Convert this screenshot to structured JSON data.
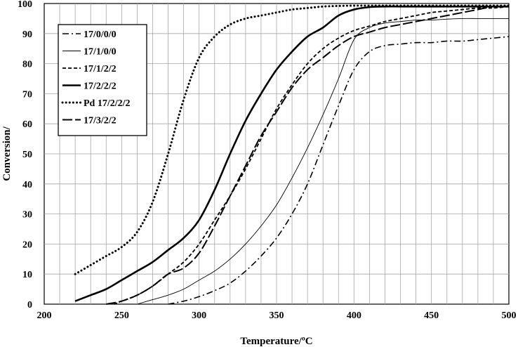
{
  "chart_data": {
    "type": "line",
    "xlabel": "Temperature/ºC",
    "ylabel": "Conversion/",
    "xlim": [
      200,
      500
    ],
    "ylim": [
      0,
      100
    ],
    "xticks": [
      200,
      250,
      300,
      350,
      400,
      450,
      500
    ],
    "yticks": [
      0,
      10,
      20,
      30,
      40,
      50,
      60,
      70,
      80,
      90,
      100
    ],
    "grid": true,
    "legend_position": "top-left",
    "series": [
      {
        "name": "17/0/0/0",
        "style": "dashdot",
        "x": [
          280,
          290,
          300,
          310,
          320,
          330,
          340,
          350,
          360,
          370,
          380,
          390,
          400,
          410,
          420,
          430,
          440,
          450,
          460,
          470,
          480,
          490,
          500
        ],
        "y": [
          0,
          1,
          2.5,
          4.5,
          7,
          11,
          16,
          22,
          30,
          40,
          53,
          66,
          78,
          84,
          86,
          86.5,
          87,
          87,
          87.5,
          87.5,
          88,
          88.5,
          89
        ]
      },
      {
        "name": "17/1/0/0",
        "style": "thin",
        "x": [
          260,
          270,
          280,
          290,
          300,
          310,
          320,
          330,
          340,
          350,
          360,
          370,
          380,
          390,
          400,
          410,
          420,
          430,
          440,
          450,
          460,
          470,
          480,
          490,
          500
        ],
        "y": [
          0,
          1.5,
          3,
          5,
          8,
          11,
          15,
          20,
          26,
          33,
          42,
          52,
          63,
          75,
          88,
          92,
          93.5,
          94,
          94.5,
          94.5,
          94.8,
          95,
          95,
          95,
          95
        ]
      },
      {
        "name": "17/1/2/2",
        "style": "dashed",
        "x": [
          245,
          250,
          260,
          270,
          280,
          290,
          300,
          310,
          320,
          330,
          340,
          350,
          360,
          370,
          380,
          390,
          400,
          410,
          420,
          430,
          440,
          450,
          460,
          470,
          480,
          490,
          500
        ],
        "y": [
          0,
          1,
          3,
          6,
          10,
          14,
          20,
          28,
          36,
          45,
          55,
          65,
          73,
          80,
          85,
          88.5,
          91,
          92.5,
          94,
          95,
          96,
          97,
          97.5,
          98,
          98.5,
          98.5,
          99
        ]
      },
      {
        "name": "17/2/2/2",
        "style": "thick",
        "x": [
          220,
          230,
          240,
          250,
          260,
          270,
          280,
          290,
          300,
          310,
          320,
          330,
          340,
          350,
          360,
          370,
          380,
          390,
          400,
          410,
          420,
          430,
          440,
          450,
          460,
          470,
          480,
          490,
          500
        ],
        "y": [
          1,
          3,
          5,
          8,
          11,
          14,
          18,
          22,
          28,
          38,
          50,
          61,
          70,
          78,
          84,
          89,
          92,
          96,
          98,
          98.8,
          99,
          99,
          99,
          99,
          99,
          99,
          99,
          99,
          99
        ]
      },
      {
        "name": "Pd 17/2/2/2",
        "style": "dotted",
        "x": [
          220,
          230,
          240,
          250,
          260,
          270,
          280,
          290,
          300,
          310,
          320,
          330,
          340,
          350,
          360,
          370,
          380,
          390,
          400,
          410,
          420,
          430,
          440,
          450,
          460,
          470,
          480,
          490,
          500
        ],
        "y": [
          10,
          13,
          16,
          19,
          24,
          34,
          50,
          68,
          82,
          89,
          93,
          95,
          96,
          97,
          98,
          98.5,
          99,
          99.2,
          99.3,
          99.3,
          99.3,
          99.3,
          99.3,
          99.3,
          99.3,
          99.3,
          99.3,
          99.3,
          99.3
        ]
      },
      {
        "name": "17/3/2/2",
        "style": "longdash",
        "x": [
          240,
          250,
          260,
          270,
          280,
          290,
          300,
          310,
          320,
          330,
          340,
          350,
          360,
          370,
          380,
          390,
          400,
          410,
          420,
          430,
          440,
          450,
          460,
          470,
          480,
          490,
          500
        ],
        "y": [
          0,
          1,
          3,
          6,
          10,
          12,
          17,
          26,
          36,
          46,
          56,
          64,
          72,
          78,
          82,
          86,
          89,
          90.5,
          92,
          93,
          94,
          95,
          96,
          97,
          98,
          99,
          99
        ]
      }
    ]
  }
}
